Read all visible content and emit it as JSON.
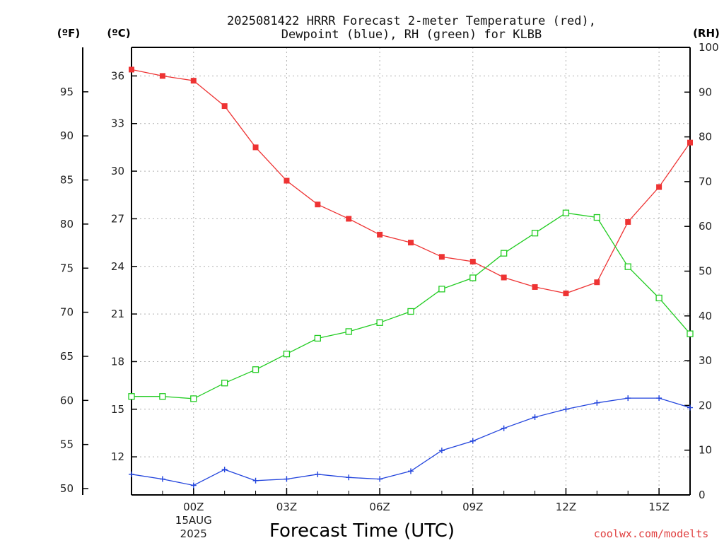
{
  "chart_data": {
    "type": "line",
    "title": [
      "2025081422 HRRR Forecast 2-meter Temperature (red),",
      "Dewpoint (blue), RH (green) for KLBB"
    ],
    "xlabel": "Forecast Time (UTC)",
    "credit": "coolwx.com/modelts",
    "axes": {
      "fahrenheit": {
        "label": "(ºF)",
        "ticks": [
          50,
          55,
          60,
          65,
          70,
          75,
          80,
          85,
          90,
          95
        ]
      },
      "celsius": {
        "label": "(ºC)",
        "range": [
          9.6,
          37.8
        ],
        "ticks": [
          12,
          15,
          18,
          21,
          24,
          27,
          30,
          33,
          36
        ]
      },
      "rh": {
        "label": "(RH)",
        "range": [
          0,
          100
        ],
        "ticks": [
          0,
          10,
          20,
          30,
          40,
          50,
          60,
          70,
          80,
          90,
          100
        ]
      }
    },
    "x": [
      "22Z",
      "23Z",
      "00Z",
      "01Z",
      "02Z",
      "03Z",
      "04Z",
      "05Z",
      "06Z",
      "07Z",
      "08Z",
      "09Z",
      "10Z",
      "11Z",
      "12Z",
      "13Z",
      "14Z",
      "15Z",
      "16Z"
    ],
    "x_ticks": [
      {
        "at": "00Z",
        "label": "00Z",
        "sub": [
          "15AUG",
          "2025"
        ]
      },
      {
        "at": "03Z",
        "label": "03Z"
      },
      {
        "at": "06Z",
        "label": "06Z"
      },
      {
        "at": "09Z",
        "label": "09Z"
      },
      {
        "at": "12Z",
        "label": "12Z"
      },
      {
        "at": "15Z",
        "label": "15Z"
      }
    ],
    "series": [
      {
        "name": "Temperature",
        "axis": "celsius",
        "color": "#ee3333",
        "marker": "filled-square",
        "values": [
          36.4,
          36.0,
          35.7,
          34.1,
          31.5,
          29.4,
          27.9,
          27.0,
          26.0,
          25.5,
          24.6,
          24.3,
          23.3,
          22.7,
          22.3,
          23.0,
          26.8,
          29.0,
          31.8
        ]
      },
      {
        "name": "Dewpoint",
        "axis": "celsius",
        "color": "#2244dd",
        "marker": "plus",
        "values": [
          10.9,
          10.6,
          10.2,
          11.2,
          10.5,
          10.6,
          10.9,
          10.7,
          10.6,
          11.1,
          12.4,
          13.0,
          13.8,
          14.5,
          15.0,
          15.4,
          15.7,
          15.7,
          15.1
        ]
      },
      {
        "name": "RH",
        "axis": "rh",
        "color": "#22cc22",
        "marker": "open-square",
        "values": [
          22,
          22,
          21.5,
          25,
          28,
          31.5,
          35,
          36.5,
          38.5,
          41,
          46,
          48.5,
          54,
          58.5,
          63,
          62,
          51,
          44,
          36
        ]
      }
    ],
    "grid": true,
    "legend": "none"
  }
}
